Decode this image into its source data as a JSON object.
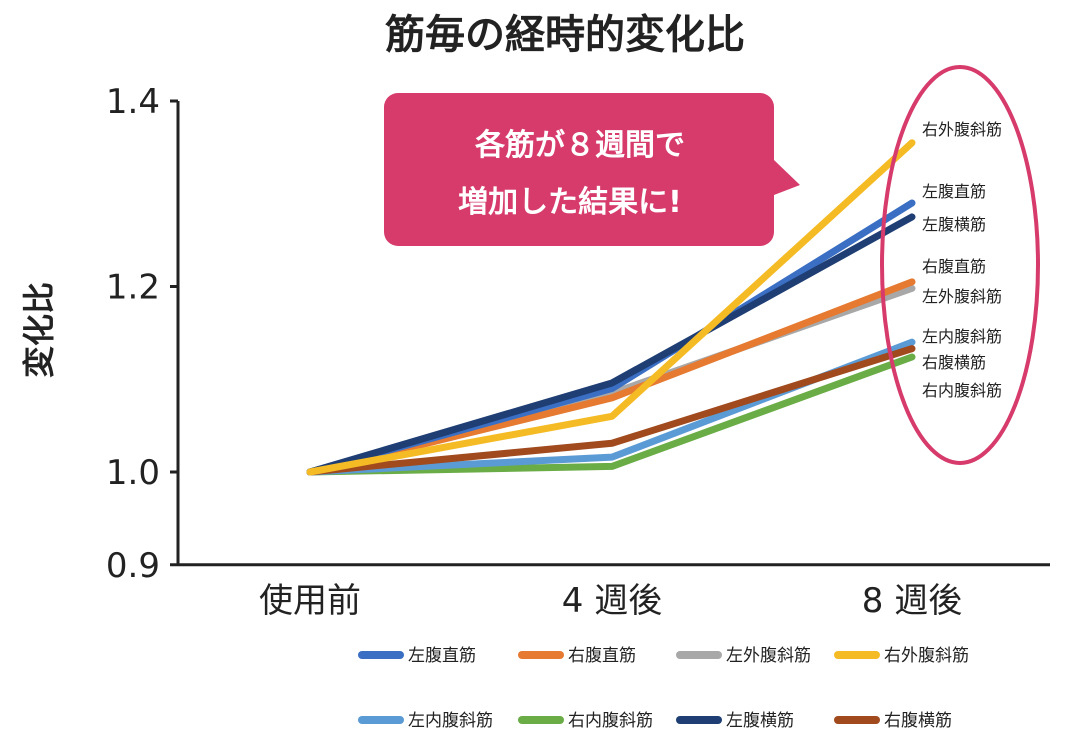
{
  "chart_data": {
    "type": "line",
    "title": "筋毎の経時的変化比",
    "xlabel": "",
    "ylabel": "変化比",
    "categories": [
      "使用前",
      "4 週後",
      "8 週後"
    ],
    "yticks": [
      "1.4",
      "1.2",
      "1.0",
      "0.9"
    ],
    "ytick_values": [
      1.4,
      1.2,
      1.0,
      0.9
    ],
    "ylim": [
      0.9,
      1.4
    ],
    "grid": false,
    "legend_position": "bottom",
    "series": [
      {
        "name": "左腹直筋",
        "color": "#3a6fc4",
        "values": [
          1.0,
          1.09,
          1.29
        ]
      },
      {
        "name": "右腹直筋",
        "color": "#e57a30",
        "values": [
          1.0,
          1.08,
          1.205
        ]
      },
      {
        "name": "左外腹斜筋",
        "color": "#a8a8a8",
        "values": [
          1.0,
          1.085,
          1.198
        ]
      },
      {
        "name": "右外腹斜筋",
        "color": "#f5bb25",
        "values": [
          1.0,
          1.06,
          1.355
        ]
      },
      {
        "name": "左内腹斜筋",
        "color": "#5b9bd5",
        "values": [
          1.0,
          1.016,
          1.14
        ]
      },
      {
        "name": "右内腹斜筋",
        "color": "#6aac46",
        "values": [
          1.0,
          1.006,
          1.124
        ]
      },
      {
        "name": "左腹横筋",
        "color": "#1f3e74",
        "values": [
          1.0,
          1.096,
          1.275
        ]
      },
      {
        "name": "右腹横筋",
        "color": "#a04a1e",
        "values": [
          1.0,
          1.031,
          1.133
        ]
      }
    ],
    "annotations": {
      "callout_lines": [
        "各筋が８週間で",
        "増加した結果に!"
      ],
      "end_labels": [
        "右外腹斜筋",
        "左腹直筋",
        "左腹横筋",
        "右腹直筋",
        "左外腹斜筋",
        "左内腹斜筋",
        "右腹横筋",
        "右内腹斜筋"
      ],
      "highlight_color": "#d63b6c"
    }
  }
}
